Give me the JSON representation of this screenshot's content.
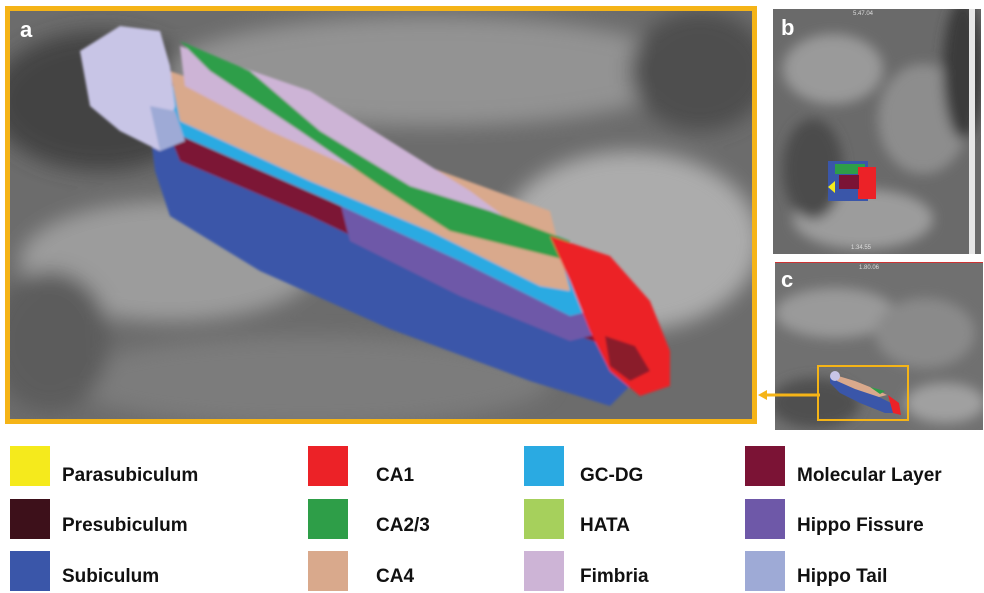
{
  "panels": [
    {
      "label": "a"
    },
    {
      "label": "b",
      "readout_top": "5.47.04",
      "readout_bottom": "1.34.55"
    },
    {
      "label": "c",
      "readout_top": "1.80.06"
    }
  ],
  "legend": [
    {
      "name": "Parasubiculum",
      "color": "#f5ea1c"
    },
    {
      "name": "CA1",
      "color": "#ec2227"
    },
    {
      "name": "GC-DG",
      "color": "#2aaae2"
    },
    {
      "name": "Molecular Layer",
      "color": "#7b1335"
    },
    {
      "name": "Presubiculum",
      "color": "#3d101a"
    },
    {
      "name": "CA2/3",
      "color": "#2e9e48"
    },
    {
      "name": "HATA",
      "color": "#a6d05c"
    },
    {
      "name": "Hippo Fissure",
      "color": "#6e58a8"
    },
    {
      "name": "Subiculum",
      "color": "#3a56a9"
    },
    {
      "name": "CA4",
      "color": "#d9a98c"
    },
    {
      "name": "Fimbria",
      "color": "#cdb4d6"
    },
    {
      "name": "Hippo Tail",
      "color": "#9eaad6"
    }
  ],
  "colors": {
    "frame": "#f5b417"
  }
}
